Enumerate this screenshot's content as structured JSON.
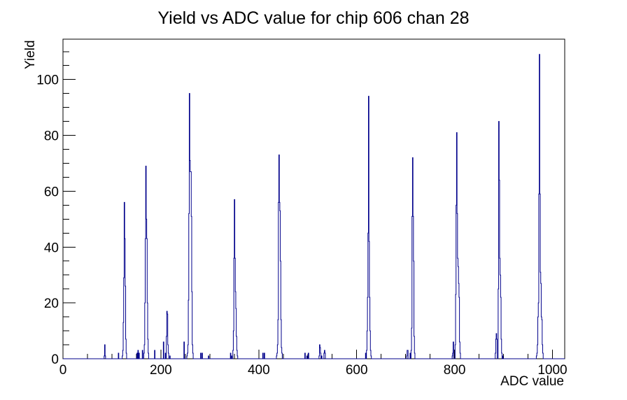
{
  "chart_data": {
    "type": "bar",
    "style": "root-histogram-step",
    "title": "Yield vs ADC value for chip 606 chan 28",
    "xlabel": "ADC value",
    "ylabel": "Yield",
    "xlim": [
      0,
      1025
    ],
    "ylim": [
      0,
      114.45
    ],
    "x_major_ticks": [
      0,
      200,
      400,
      600,
      800,
      1000
    ],
    "x_minor_step": 50,
    "y_major_ticks": [
      0,
      20,
      40,
      60,
      80,
      100
    ],
    "y_minor_step": 5,
    "bin_width": 1,
    "grid": "off",
    "legend": "none",
    "line_color": "#00008b",
    "bins": [
      [
        84,
        1
      ],
      [
        85,
        5
      ],
      [
        86,
        1
      ],
      [
        113,
        2
      ],
      [
        121,
        1
      ],
      [
        122,
        3
      ],
      [
        123,
        13
      ],
      [
        124,
        29
      ],
      [
        125,
        56
      ],
      [
        126,
        43
      ],
      [
        127,
        26
      ],
      [
        128,
        7
      ],
      [
        129,
        2
      ],
      [
        151,
        2
      ],
      [
        153,
        3
      ],
      [
        155,
        2
      ],
      [
        162,
        3
      ],
      [
        165,
        2
      ],
      [
        166,
        5
      ],
      [
        167,
        20
      ],
      [
        168,
        43
      ],
      [
        169,
        69
      ],
      [
        170,
        50
      ],
      [
        171,
        43
      ],
      [
        172,
        20
      ],
      [
        173,
        7
      ],
      [
        174,
        2
      ],
      [
        187,
        3
      ],
      [
        205,
        6
      ],
      [
        209,
        2
      ],
      [
        211,
        8
      ],
      [
        212,
        17
      ],
      [
        213,
        16
      ],
      [
        214,
        5
      ],
      [
        215,
        2
      ],
      [
        218,
        1
      ],
      [
        247,
        6
      ],
      [
        253,
        1
      ],
      [
        254,
        2
      ],
      [
        255,
        5
      ],
      [
        256,
        21
      ],
      [
        257,
        52
      ],
      [
        258,
        95
      ],
      [
        259,
        71
      ],
      [
        260,
        67
      ],
      [
        261,
        67
      ],
      [
        262,
        51
      ],
      [
        263,
        24
      ],
      [
        264,
        5
      ],
      [
        265,
        2
      ],
      [
        281,
        2
      ],
      [
        284,
        2
      ],
      [
        297,
        1
      ],
      [
        342,
        2
      ],
      [
        344,
        1
      ],
      [
        347,
        3
      ],
      [
        348,
        10
      ],
      [
        349,
        36
      ],
      [
        350,
        57
      ],
      [
        351,
        36
      ],
      [
        352,
        24
      ],
      [
        353,
        18
      ],
      [
        354,
        8
      ],
      [
        355,
        3
      ],
      [
        356,
        1
      ],
      [
        408,
        2
      ],
      [
        411,
        2
      ],
      [
        436,
        1
      ],
      [
        437,
        2
      ],
      [
        438,
        5
      ],
      [
        439,
        14
      ],
      [
        440,
        56
      ],
      [
        441,
        73
      ],
      [
        442,
        56
      ],
      [
        443,
        53
      ],
      [
        444,
        35
      ],
      [
        445,
        14
      ],
      [
        446,
        4
      ],
      [
        447,
        2
      ],
      [
        494,
        2
      ],
      [
        498,
        1
      ],
      [
        501,
        2
      ],
      [
        523,
        1
      ],
      [
        524,
        5
      ],
      [
        525,
        4
      ],
      [
        526,
        2
      ],
      [
        528,
        1
      ],
      [
        533,
        2
      ],
      [
        534,
        3
      ],
      [
        535,
        2
      ],
      [
        618,
        2
      ],
      [
        620,
        3
      ],
      [
        621,
        10
      ],
      [
        622,
        22
      ],
      [
        623,
        45
      ],
      [
        624,
        94
      ],
      [
        625,
        42
      ],
      [
        626,
        22
      ],
      [
        627,
        10
      ],
      [
        628,
        3
      ],
      [
        629,
        1
      ],
      [
        702,
        1
      ],
      [
        703,
        3
      ],
      [
        704,
        3
      ],
      [
        709,
        2
      ],
      [
        711,
        3
      ],
      [
        712,
        11
      ],
      [
        713,
        51
      ],
      [
        714,
        72
      ],
      [
        715,
        51
      ],
      [
        716,
        35
      ],
      [
        717,
        8
      ],
      [
        718,
        2
      ],
      [
        795,
        1
      ],
      [
        796,
        2
      ],
      [
        797,
        6
      ],
      [
        801,
        5
      ],
      [
        802,
        23
      ],
      [
        803,
        55
      ],
      [
        804,
        81
      ],
      [
        805,
        52
      ],
      [
        806,
        36
      ],
      [
        807,
        33
      ],
      [
        808,
        27
      ],
      [
        809,
        22
      ],
      [
        810,
        6
      ],
      [
        811,
        2
      ],
      [
        883,
        2
      ],
      [
        884,
        7
      ],
      [
        885,
        9
      ],
      [
        886,
        7
      ],
      [
        889,
        25
      ],
      [
        890,
        85
      ],
      [
        891,
        64
      ],
      [
        892,
        36
      ],
      [
        893,
        30
      ],
      [
        894,
        22
      ],
      [
        895,
        7
      ],
      [
        896,
        2
      ],
      [
        898,
        1
      ],
      [
        967,
        1
      ],
      [
        968,
        2
      ],
      [
        969,
        5
      ],
      [
        970,
        15
      ],
      [
        971,
        20
      ],
      [
        972,
        59
      ],
      [
        973,
        109
      ],
      [
        974,
        59
      ],
      [
        975,
        31
      ],
      [
        976,
        27
      ],
      [
        977,
        15
      ],
      [
        978,
        14
      ],
      [
        979,
        5
      ],
      [
        980,
        2
      ]
    ]
  }
}
